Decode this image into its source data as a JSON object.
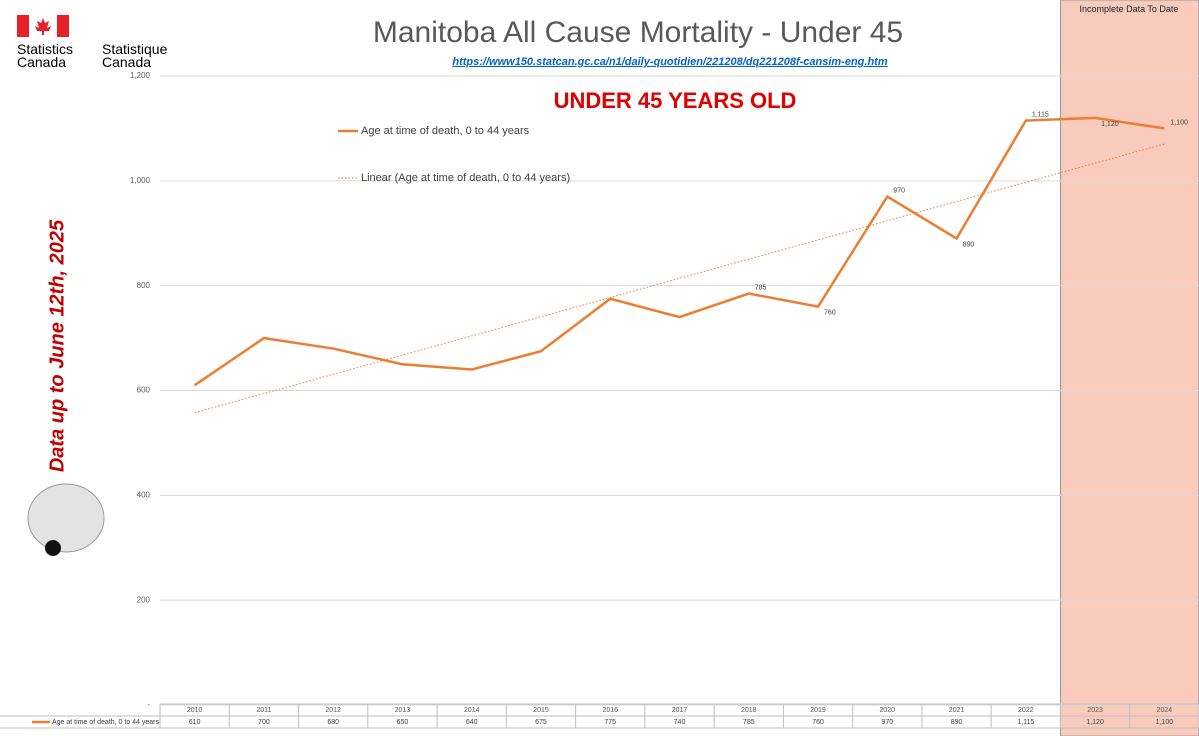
{
  "logo": {
    "english": "Statistics Canada",
    "french": "Statistique Canada"
  },
  "chart_data": {
    "type": "line",
    "title": "Manitoba All Cause Mortality - Under 45",
    "subtitle": "https://www150.statcan.gc.ca/n1/daily-quotidien/221208/dq221208f-cansim-eng.htm",
    "annotation": "UNDER 45 YEARS OLD",
    "side_note": "Data up to June 12th, 2025",
    "categories": [
      "2010",
      "2011",
      "2012",
      "2013",
      "2014",
      "2015",
      "2016",
      "2017",
      "2018",
      "2019",
      "2020",
      "2021",
      "2022",
      "2023",
      "2024"
    ],
    "series": [
      {
        "name": "Age at time of death, 0 to 44 years",
        "color": "#ed7d31",
        "values": [
          610,
          700,
          680,
          650,
          640,
          675,
          775,
          740,
          785,
          760,
          970,
          890,
          1115,
          1120,
          1100
        ],
        "value_labels": [
          "610",
          "700",
          "680",
          "650",
          "640",
          "675",
          "775",
          "740",
          "785",
          "760",
          "970",
          "890",
          "1,115",
          "1,120",
          "1,100"
        ],
        "point_labels": [
          null,
          null,
          null,
          null,
          null,
          null,
          null,
          null,
          "785",
          "760",
          "970",
          "890",
          "1,115",
          "1,120",
          "1,100"
        ]
      }
    ],
    "trendline": {
      "name": "Linear (Age at time of death, 0 to 44 years)",
      "type": "linear",
      "color": "#ed7d31"
    },
    "ylim": [
      0,
      1200
    ],
    "yticks": [
      {
        "value": 0,
        "label": "-"
      },
      200,
      400,
      600,
      800,
      {
        "value": 1000,
        "label": "1,000"
      },
      {
        "value": 1200,
        "label": "1,200"
      }
    ],
    "grid": true,
    "highlight": {
      "from": "2023",
      "label": "Incomplete Data To Date",
      "color": "#f8cbbd"
    }
  }
}
